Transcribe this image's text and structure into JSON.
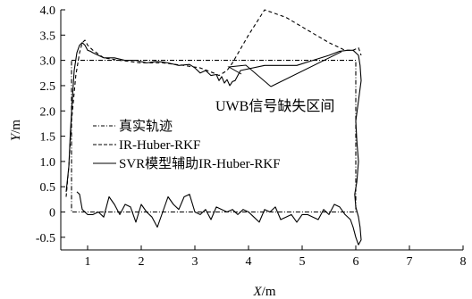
{
  "chart_data": {
    "type": "line",
    "title": "",
    "xlabel": "X/m",
    "ylabel": "Y/m",
    "x_axis": {
      "var": "X",
      "unit": "/m"
    },
    "y_axis": {
      "var": "Y",
      "unit": "/m"
    },
    "xlim": [
      0.5,
      8
    ],
    "ylim": [
      -0.75,
      4.0
    ],
    "xticks": [
      1,
      2,
      3,
      4,
      5,
      6,
      7,
      8
    ],
    "yticks": [
      -0.5,
      0.0,
      0.5,
      1.0,
      1.5,
      2.0,
      2.5,
      3.0,
      3.5,
      4.0
    ],
    "ytick_labels": [
      "-0.5",
      "0",
      "0.5",
      "1.0",
      "1.5",
      "2.0",
      "2.5",
      "3.0",
      "3.5",
      "4.0"
    ],
    "grid": false,
    "legend_position": "center-left",
    "annotation": "UWB信号缺失区间",
    "series": [
      {
        "name": "真实轨迹",
        "style": "dash-dot",
        "color": "#000000",
        "x": [
          0.7,
          6.0,
          6.0,
          0.7,
          0.7
        ],
        "y": [
          3.0,
          3.0,
          0.0,
          0.0,
          3.0
        ]
      },
      {
        "name": "IR-Huber-RKF",
        "style": "dashed",
        "color": "#000000",
        "x": [
          0.6,
          0.65,
          0.7,
          0.78,
          0.85,
          0.9,
          0.95,
          1.0,
          1.1,
          1.3,
          1.6,
          2.0,
          2.4,
          2.8,
          3.1,
          3.35,
          3.45,
          3.6,
          3.7,
          4.0,
          4.3,
          4.7,
          5.1,
          5.5,
          5.8,
          5.9,
          5.95,
          6.05,
          6.1
        ],
        "y": [
          0.3,
          0.9,
          1.8,
          2.7,
          3.15,
          3.35,
          3.4,
          3.3,
          3.2,
          3.05,
          3.0,
          2.95,
          2.95,
          2.9,
          2.85,
          2.75,
          2.7,
          2.8,
          2.95,
          3.5,
          4.0,
          3.85,
          3.6,
          3.35,
          3.2,
          3.2,
          3.2,
          3.25,
          3.1
        ]
      },
      {
        "name": "SVR模型辅助IR-Huber-RKF",
        "style": "solid",
        "color": "#000000",
        "x": [
          0.6,
          0.65,
          0.68,
          0.72,
          0.75,
          0.8,
          0.85,
          0.9,
          0.95,
          1.0,
          1.05,
          1.1,
          1.2,
          1.3,
          1.5,
          1.7,
          1.9,
          2.1,
          2.3,
          2.5,
          2.7,
          2.9,
          3.0,
          3.1,
          3.2,
          3.3,
          3.4,
          3.45,
          3.5,
          3.55,
          3.6,
          3.65,
          3.7,
          3.75,
          3.8,
          3.85,
          4.3,
          4.9,
          5.2,
          5.5,
          5.7,
          5.85,
          5.9,
          5.95,
          6.0,
          6.05,
          6.08,
          6.1,
          6.05,
          6.0,
          6.02,
          6.05,
          6.02,
          5.98,
          6.0,
          6.05,
          6.08,
          6.1,
          6.05,
          6.0,
          5.95,
          5.9,
          5.8,
          5.7,
          5.6,
          5.5,
          5.4,
          5.3,
          5.2,
          5.1,
          5.0,
          4.9,
          4.8,
          4.7,
          4.6,
          4.5,
          4.4,
          4.3,
          4.2,
          4.1,
          4.0,
          3.9,
          3.8,
          3.7,
          3.6,
          3.5,
          3.4,
          3.3,
          3.2,
          3.1,
          3.0,
          2.9,
          2.8,
          2.7,
          2.6,
          2.5,
          2.4,
          2.3,
          2.2,
          2.1,
          2.0,
          1.9,
          1.8,
          1.7,
          1.6,
          1.5,
          1.4,
          1.3,
          1.2,
          1.1,
          1.0,
          0.9,
          0.85,
          0.8
        ],
        "y": [
          0.4,
          0.9,
          1.6,
          2.3,
          2.8,
          3.15,
          3.3,
          3.35,
          3.3,
          3.2,
          3.18,
          3.15,
          3.1,
          3.05,
          3.05,
          3.0,
          3.0,
          2.95,
          2.98,
          2.95,
          2.9,
          2.92,
          2.85,
          2.75,
          2.8,
          2.7,
          2.72,
          2.6,
          2.68,
          2.55,
          2.62,
          2.5,
          2.58,
          2.6,
          2.7,
          2.8,
          2.9,
          2.9,
          3.0,
          3.1,
          3.18,
          3.2,
          3.2,
          3.2,
          3.15,
          3.1,
          2.9,
          2.6,
          2.2,
          1.8,
          1.4,
          1.0,
          0.6,
          0.35,
          0.1,
          -0.1,
          -0.3,
          -0.55,
          -0.65,
          -0.5,
          -0.3,
          -0.15,
          -0.05,
          0.1,
          0.15,
          -0.05,
          0.05,
          -0.15,
          -0.1,
          -0.05,
          -0.05,
          -0.2,
          -0.05,
          -0.1,
          -0.15,
          0.1,
          0.0,
          0.05,
          -0.2,
          -0.1,
          0.0,
          0.05,
          -0.05,
          0.05,
          0.0,
          0.05,
          0.1,
          -0.15,
          0.05,
          -0.05,
          0.0,
          0.35,
          0.3,
          0.05,
          0.15,
          0.3,
          0.0,
          -0.3,
          -0.1,
          0.0,
          0.15,
          -0.2,
          0.1,
          0.15,
          -0.05,
          0.15,
          0.3,
          -0.1,
          0.0,
          -0.05,
          -0.05,
          0.05,
          0.35,
          0.4
        ]
      }
    ]
  }
}
